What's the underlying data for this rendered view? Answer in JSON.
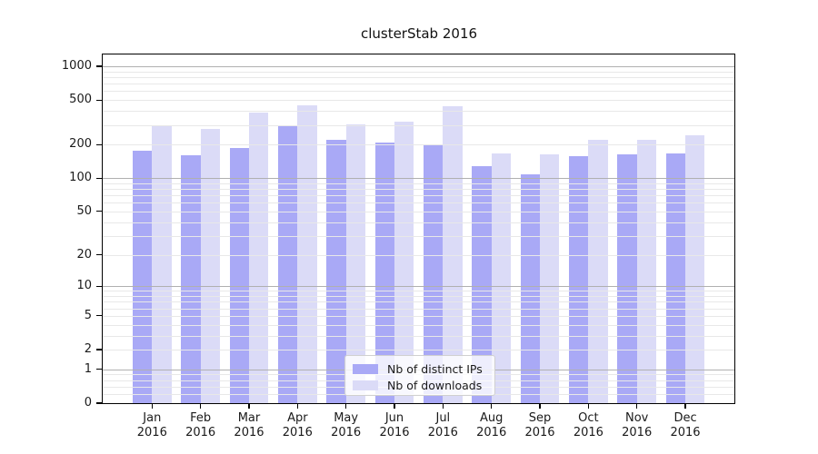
{
  "chart_data": {
    "type": "bar",
    "title": "clusterStab 2016",
    "categories": [
      "Jan",
      "Feb",
      "Mar",
      "Apr",
      "May",
      "Jun",
      "Jul",
      "Aug",
      "Sep",
      "Oct",
      "Nov",
      "Dec"
    ],
    "category_year": "2016",
    "series": [
      {
        "name": "Nb of distinct IPs",
        "color": "#a9a9f6",
        "values": [
          176,
          161,
          186,
          290,
          222,
          207,
          197,
          128,
          108,
          156,
          163,
          167
        ]
      },
      {
        "name": "Nb of downloads",
        "color": "#dbdbf7",
        "values": [
          293,
          277,
          387,
          448,
          303,
          318,
          443,
          165,
          163,
          219,
          221,
          243
        ]
      }
    ],
    "y_axis": {
      "scale": "symlog (log1p)",
      "ticks": [
        0,
        1,
        2,
        5,
        10,
        20,
        50,
        100,
        200,
        500,
        1000
      ],
      "top_value": 1275
    },
    "grid": {
      "major_lines": [
        1,
        10,
        100,
        1000
      ],
      "minor_lines": [
        0.2,
        0.4,
        0.6,
        0.8,
        2,
        3,
        4,
        5,
        6,
        7,
        8,
        9,
        20,
        30,
        40,
        50,
        60,
        70,
        80,
        90,
        200,
        300,
        400,
        500,
        600,
        700,
        800,
        900
      ]
    },
    "legend": {
      "position": "inside-bottom-center"
    }
  }
}
